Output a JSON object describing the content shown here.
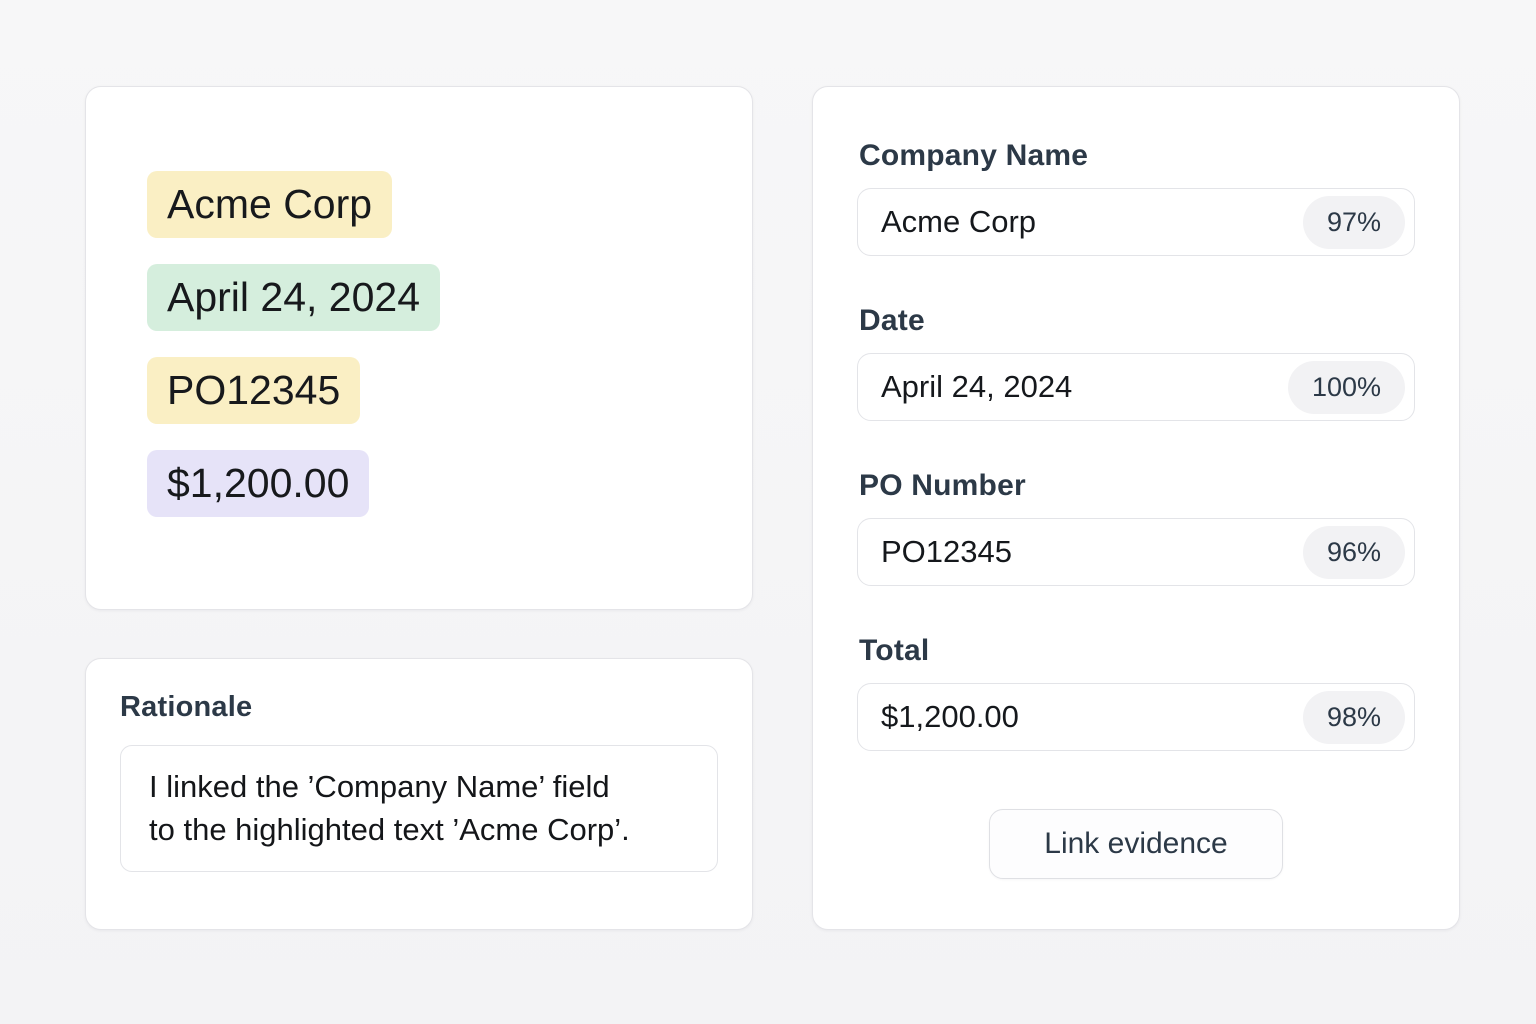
{
  "document_panel": {
    "highlights": [
      {
        "id": "company-name",
        "text": "Acme Corp",
        "color": "#FAEFC4"
      },
      {
        "id": "date",
        "text": "April 24, 2024",
        "color": "#D5EEDD"
      },
      {
        "id": "po-number",
        "text": "PO12345",
        "color": "#FAEFC4"
      },
      {
        "id": "total",
        "text": "$1,200.00",
        "color": "#E6E3F8"
      }
    ]
  },
  "rationale_panel": {
    "title": "Rationale",
    "lines": [
      "I linked the ’Company Name’ field",
      "to the highlighted text ’Acme Corp’."
    ]
  },
  "form_panel": {
    "fields": [
      {
        "label": "Company Name",
        "value": "Acme Corp",
        "confidence": "97%"
      },
      {
        "label": "Date",
        "value": "April 24, 2024",
        "confidence": "100%"
      },
      {
        "label": "PO Number",
        "value": "PO12345",
        "confidence": "96%"
      },
      {
        "label": "Total",
        "value": "$1,200.00",
        "confidence": "98%"
      }
    ],
    "link_button_label": "Link evidence"
  },
  "colors": {
    "highlight_yellow": "#FAEFC4",
    "highlight_green": "#D5EEDD",
    "highlight_purple": "#E6E3F8",
    "label_text": "#2C3947",
    "value_text": "#15181C",
    "badge_background": "#F2F2F4",
    "card_border": "#E4E4E8",
    "page_background": "#F5F5F6"
  }
}
